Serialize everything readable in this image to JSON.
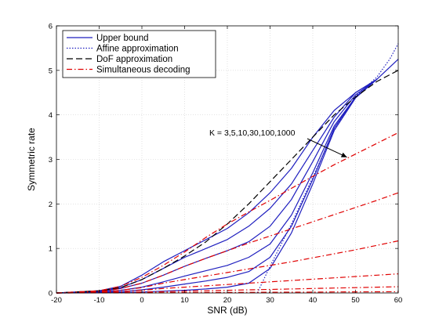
{
  "chart_data": {
    "type": "line",
    "title": "",
    "xlabel": "SNR (dB)",
    "ylabel": "Symmetric rate",
    "xlim": [
      -20,
      60
    ],
    "ylim": [
      0,
      6
    ],
    "xticks": [
      -20,
      -10,
      0,
      10,
      20,
      30,
      40,
      50,
      60
    ],
    "yticks": [
      0,
      1,
      2,
      3,
      4,
      5,
      6
    ],
    "grid": true,
    "legend_position": "top-left",
    "legend": [
      {
        "label": "Upper bound",
        "style": "solid",
        "color": "#1f1fbf"
      },
      {
        "label": "Affine approximation",
        "style": "dotted",
        "color": "#1f1fbf"
      },
      {
        "label": "DoF approximation",
        "style": "dashed",
        "color": "#000000"
      },
      {
        "label": "Simultaneous decoding",
        "style": "dashdot",
        "color": "#e00000"
      }
    ],
    "annotation": {
      "text": "K = 3,5,10,30,100,1000",
      "x": 48,
      "y": 3.05
    },
    "series": [
      {
        "group": "Upper bound",
        "K": 3,
        "x": [
          -20,
          -10,
          -5,
          0,
          5,
          10,
          15,
          20,
          25,
          30,
          35,
          40,
          45,
          50,
          55,
          60
        ],
        "y": [
          0,
          0.05,
          0.15,
          0.4,
          0.7,
          0.95,
          1.2,
          1.45,
          1.8,
          2.25,
          2.8,
          3.5,
          4.1,
          4.5,
          4.8,
          5.25
        ]
      },
      {
        "group": "Upper bound",
        "K": 5,
        "x": [
          -20,
          -10,
          -5,
          0,
          5,
          10,
          15,
          20,
          25,
          30,
          35,
          40,
          45,
          50,
          55
        ],
        "y": [
          0,
          0.04,
          0.12,
          0.3,
          0.55,
          0.8,
          1.0,
          1.2,
          1.5,
          1.9,
          2.45,
          3.2,
          3.95,
          4.5,
          4.8
        ]
      },
      {
        "group": "Upper bound",
        "K": 10,
        "x": [
          -20,
          -10,
          -5,
          0,
          5,
          10,
          15,
          20,
          25,
          30,
          35,
          40,
          45,
          50,
          55
        ],
        "y": [
          0,
          0.03,
          0.1,
          0.22,
          0.4,
          0.6,
          0.78,
          0.95,
          1.15,
          1.5,
          2.1,
          2.95,
          3.85,
          4.45,
          4.8
        ]
      },
      {
        "group": "Upper bound",
        "K": 30,
        "x": [
          -20,
          -10,
          -5,
          0,
          5,
          10,
          15,
          20,
          25,
          30,
          35,
          40,
          45,
          50,
          55
        ],
        "y": [
          0,
          0.02,
          0.06,
          0.13,
          0.25,
          0.38,
          0.5,
          0.62,
          0.8,
          1.1,
          1.75,
          2.7,
          3.75,
          4.4,
          4.8
        ]
      },
      {
        "group": "Upper bound",
        "K": 100,
        "x": [
          -20,
          -10,
          -5,
          0,
          5,
          10,
          15,
          20,
          25,
          30,
          35,
          40,
          45,
          50,
          55
        ],
        "y": [
          0,
          0.01,
          0.03,
          0.07,
          0.13,
          0.2,
          0.27,
          0.35,
          0.48,
          0.8,
          1.5,
          2.55,
          3.7,
          4.4,
          4.8
        ]
      },
      {
        "group": "Upper bound",
        "K": 1000,
        "x": [
          -20,
          -10,
          -5,
          0,
          5,
          10,
          15,
          20,
          25,
          30,
          35,
          40,
          45,
          50,
          55
        ],
        "y": [
          0,
          0.005,
          0.01,
          0.02,
          0.04,
          0.06,
          0.09,
          0.13,
          0.22,
          0.55,
          1.35,
          2.45,
          3.65,
          4.38,
          4.8
        ]
      },
      {
        "group": "Affine approximation",
        "K": 1000,
        "x": [
          27,
          30,
          35,
          40,
          45,
          50,
          55,
          58,
          60
        ],
        "y": [
          0,
          0.6,
          1.55,
          2.6,
          3.65,
          4.42,
          4.85,
          5.25,
          5.6
        ]
      },
      {
        "group": "DoF approximation",
        "x": [
          -20,
          -10,
          -5,
          0,
          5,
          10,
          15,
          20,
          25,
          30,
          35,
          40,
          45,
          50,
          55,
          60
        ],
        "y": [
          0,
          0.05,
          0.12,
          0.3,
          0.55,
          0.83,
          1.15,
          1.55,
          2.0,
          2.5,
          3.0,
          3.5,
          4.0,
          4.4,
          4.75,
          5.0
        ]
      },
      {
        "group": "Simultaneous decoding",
        "K": 3,
        "x": [
          -20,
          -10,
          -5,
          0,
          5,
          10,
          15,
          20,
          25,
          30,
          35,
          40,
          45,
          50,
          55,
          60
        ],
        "y": [
          0,
          0.05,
          0.15,
          0.35,
          0.62,
          0.92,
          1.25,
          1.55,
          1.82,
          2.08,
          2.35,
          2.62,
          2.88,
          3.12,
          3.36,
          3.6
        ]
      },
      {
        "group": "Simultaneous decoding",
        "K": 5,
        "x": [
          -20,
          -10,
          -5,
          0,
          5,
          10,
          15,
          20,
          25,
          30,
          35,
          40,
          45,
          50,
          55,
          60
        ],
        "y": [
          0,
          0.03,
          0.1,
          0.22,
          0.4,
          0.6,
          0.78,
          0.95,
          1.12,
          1.28,
          1.44,
          1.6,
          1.76,
          1.92,
          2.08,
          2.25
        ]
      },
      {
        "group": "Simultaneous decoding",
        "K": 10,
        "x": [
          -20,
          -10,
          -5,
          0,
          5,
          10,
          15,
          20,
          25,
          30,
          35,
          40,
          45,
          50,
          55,
          60
        ],
        "y": [
          0,
          0.02,
          0.06,
          0.12,
          0.22,
          0.3,
          0.38,
          0.46,
          0.54,
          0.62,
          0.7,
          0.79,
          0.88,
          0.97,
          1.07,
          1.17
        ]
      },
      {
        "group": "Simultaneous decoding",
        "K": 30,
        "x": [
          -20,
          -10,
          -5,
          0,
          5,
          10,
          15,
          20,
          25,
          30,
          35,
          40,
          45,
          50,
          55,
          60
        ],
        "y": [
          0,
          0.01,
          0.03,
          0.06,
          0.1,
          0.13,
          0.16,
          0.19,
          0.22,
          0.25,
          0.28,
          0.31,
          0.34,
          0.37,
          0.4,
          0.43
        ]
      },
      {
        "group": "Simultaneous decoding",
        "K": 100,
        "x": [
          -20,
          -10,
          -5,
          0,
          5,
          10,
          15,
          20,
          25,
          30,
          35,
          40,
          45,
          50,
          55,
          60
        ],
        "y": [
          0,
          0.005,
          0.01,
          0.02,
          0.03,
          0.04,
          0.05,
          0.06,
          0.07,
          0.08,
          0.09,
          0.1,
          0.11,
          0.12,
          0.13,
          0.14
        ]
      },
      {
        "group": "Simultaneous decoding",
        "K": 1000,
        "x": [
          -20,
          -10,
          -5,
          0,
          5,
          10,
          15,
          20,
          25,
          30,
          35,
          40,
          45,
          50,
          55,
          60
        ],
        "y": [
          0,
          0.001,
          0.002,
          0.004,
          0.006,
          0.008,
          0.01,
          0.012,
          0.014,
          0.016,
          0.018,
          0.02,
          0.022,
          0.024,
          0.026,
          0.028
        ]
      }
    ]
  }
}
